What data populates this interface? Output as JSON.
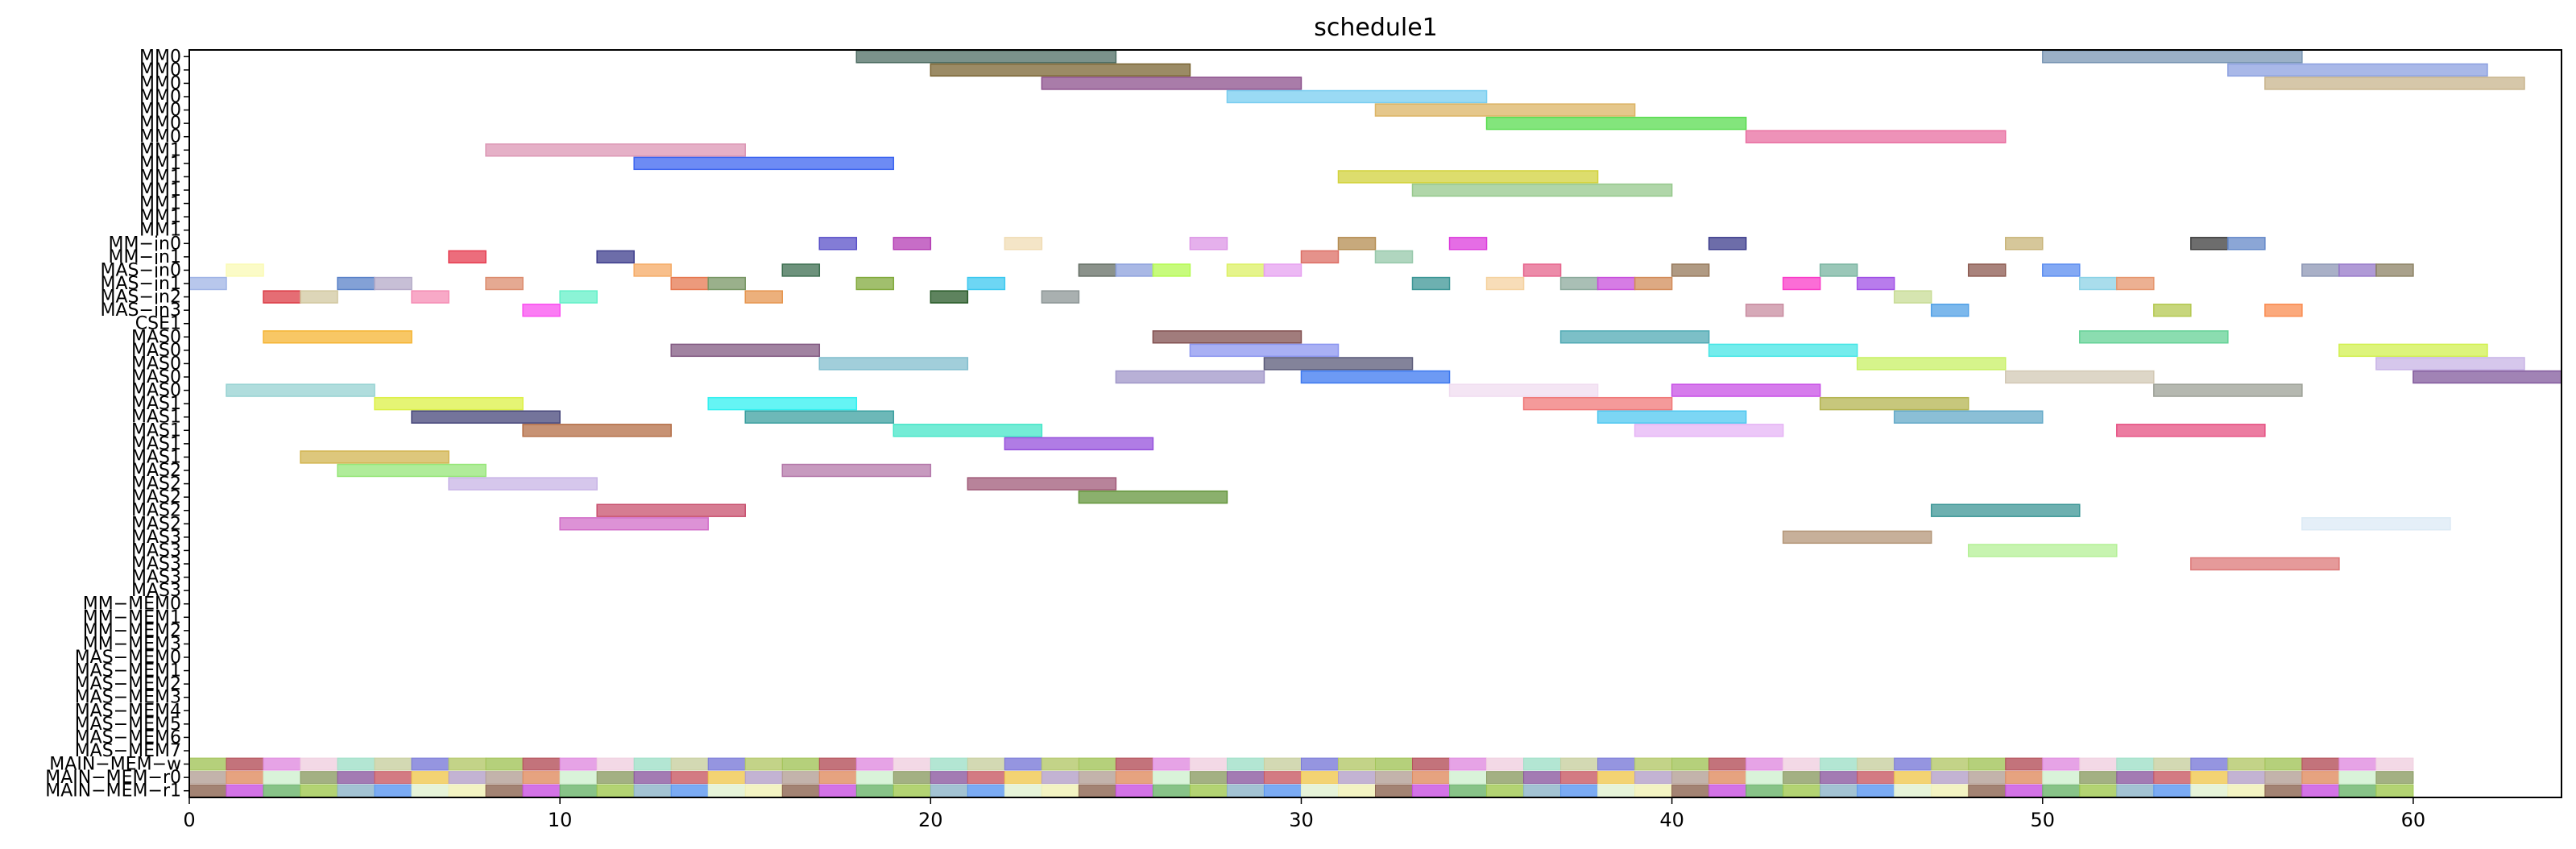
{
  "chart_data": {
    "type": "gantt",
    "title": "schedule1",
    "xlim": [
      0,
      64
    ],
    "x_ticks": [
      0,
      10,
      20,
      30,
      40,
      50,
      60
    ],
    "lanes": [
      "MM0",
      "MM0",
      "MM0",
      "MM0",
      "MM0",
      "MM0",
      "MM0",
      "MM1",
      "MM1",
      "MM1",
      "MM1",
      "MM1",
      "MM1",
      "MM1",
      "MM−in0",
      "MM−in1",
      "MAS−in0",
      "MAS−in1",
      "MAS−in2",
      "MAS−in3",
      "CSE1",
      "MAS0",
      "MAS0",
      "MAS0",
      "MAS0",
      "MAS0",
      "MAS1",
      "MAS1",
      "MAS1",
      "MAS1",
      "MAS1",
      "MAS2",
      "MAS2",
      "MAS2",
      "MAS2",
      "MAS2",
      "MAS3",
      "MAS3",
      "MAS3",
      "MAS3",
      "MAS3",
      "MM−MEM0",
      "MM−MEM1",
      "MM−MEM2",
      "MM−MEM3",
      "MAS−MEM0",
      "MAS−MEM1",
      "MAS−MEM2",
      "MAS−MEM3",
      "MAS−MEM4",
      "MAS−MEM5",
      "MAS−MEM6",
      "MAS−MEM7",
      "MAIN−MEM−w",
      "MAIN−MEM−r0",
      "MAIN−MEM−r1"
    ],
    "palette": [
      "#a3c45a",
      "#5aa05a",
      "#c8f08c",
      "#e0e060",
      "#90ee70",
      "#5a96f0",
      "#b4a0c8",
      "#b4505a",
      "#50b4c8",
      "#90c8a0",
      "#5ae05a",
      "#b450b4",
      "#e0f0d0",
      "#b4a096",
      "#e08ce0",
      "#b45ab4",
      "#7aee7a",
      "#e08c50",
      "#a0e080",
      "#f0f0b4",
      "#e08c60",
      "#f0d0e0",
      "#d0a0b4",
      "#c8b4dc",
      "#50b496",
      "#4682b4",
      "#8c6450",
      "#d0f0d0",
      "#a0e0c8",
      "#f08cb4",
      "#a0a080",
      "#a0508c",
      "#c8d850",
      "#c850e0",
      "#8c9c64",
      "#c8d0a0",
      "#a060e0",
      "#a0b4e0",
      "#6a6ad8",
      "#7ae0a0",
      "#6ab46a",
      "#8c5aa0",
      "#7a7ad8",
      "#f0b4f0",
      "#a0c8f0",
      "#b49c50",
      "#7ac8b4",
      "#a0c850",
      "#c85a64",
      "#b4c86a",
      "#5a8c8c",
      "#f09ca0",
      "#d0a050",
      "#b4a0b4",
      "#8cb4c8",
      "#f0c850"
    ],
    "bars": [
      {
        "lane": 0,
        "start": 18,
        "end": 25,
        "color": "#4f6e64"
      },
      {
        "lane": 0,
        "start": 50,
        "end": 57,
        "color": "#7a96b4"
      },
      {
        "lane": 1,
        "start": 20,
        "end": 27,
        "color": "#7a6432"
      },
      {
        "lane": 1,
        "start": 55,
        "end": 62,
        "color": "#8ca0e0"
      },
      {
        "lane": 2,
        "start": 23,
        "end": 30,
        "color": "#8c508c"
      },
      {
        "lane": 2,
        "start": 56,
        "end": 63,
        "color": "#c8b48c"
      },
      {
        "lane": 3,
        "start": 28,
        "end": 35,
        "color": "#78cdf0"
      },
      {
        "lane": 4,
        "start": 32,
        "end": 39,
        "color": "#dcb464"
      },
      {
        "lane": 5,
        "start": 35,
        "end": 42,
        "color": "#5adc50"
      },
      {
        "lane": 6,
        "start": 42,
        "end": 49,
        "color": "#e86ea0"
      },
      {
        "lane": 7,
        "start": 8,
        "end": 15,
        "color": "#dc96b4"
      },
      {
        "lane": 8,
        "start": 12,
        "end": 19,
        "color": "#3c64f0"
      },
      {
        "lane": 9,
        "start": 31,
        "end": 38,
        "color": "#d2d23c"
      },
      {
        "lane": 10,
        "start": 33,
        "end": 40,
        "color": "#96c88c"
      },
      {
        "lane": 14,
        "start": 17,
        "end": 18,
        "color": "#5a50c8"
      },
      {
        "lane": 14,
        "start": 19,
        "end": 20,
        "color": "#b43cb4"
      },
      {
        "lane": 14,
        "start": 22,
        "end": 23,
        "color": "#f0dcb4"
      },
      {
        "lane": 14,
        "start": 27,
        "end": 28,
        "color": "#dc96e6"
      },
      {
        "lane": 14,
        "start": 31,
        "end": 32,
        "color": "#b48c50"
      },
      {
        "lane": 14,
        "start": 34,
        "end": 35,
        "color": "#dc3cdc"
      },
      {
        "lane": 14,
        "start": 41,
        "end": 42,
        "color": "#3c3c8c"
      },
      {
        "lane": 14,
        "start": 49,
        "end": 50,
        "color": "#c8b478"
      },
      {
        "lane": 14,
        "start": 54,
        "end": 55,
        "color": "#3c3c3c"
      },
      {
        "lane": 14,
        "start": 55,
        "end": 56,
        "color": "#6488c8"
      },
      {
        "lane": 15,
        "start": 7,
        "end": 8,
        "color": "#e63c50"
      },
      {
        "lane": 15,
        "start": 11,
        "end": 12,
        "color": "#3c3c8c"
      },
      {
        "lane": 15,
        "start": 30,
        "end": 31,
        "color": "#dc6e64"
      },
      {
        "lane": 15,
        "start": 32,
        "end": 33,
        "color": "#96c8aa"
      },
      {
        "lane": 16,
        "start": 1,
        "end": 2,
        "color": "#fafab4"
      },
      {
        "lane": 16,
        "start": 12,
        "end": 13,
        "color": "#f5aa64"
      },
      {
        "lane": 16,
        "start": 16,
        "end": 17,
        "color": "#3c6e50"
      },
      {
        "lane": 16,
        "start": 24,
        "end": 25,
        "color": "#646e64"
      },
      {
        "lane": 16,
        "start": 25,
        "end": 26,
        "color": "#8ca0dc"
      },
      {
        "lane": 16,
        "start": 26,
        "end": 27,
        "color": "#b4fa50"
      },
      {
        "lane": 16,
        "start": 28,
        "end": 29,
        "color": "#dcf064"
      },
      {
        "lane": 16,
        "start": 29,
        "end": 30,
        "color": "#e6a0f0"
      },
      {
        "lane": 16,
        "start": 36,
        "end": 37,
        "color": "#e6648c"
      },
      {
        "lane": 16,
        "start": 40,
        "end": 41,
        "color": "#96785a"
      },
      {
        "lane": 16,
        "start": 44,
        "end": 45,
        "color": "#78b4a0"
      },
      {
        "lane": 16,
        "start": 48,
        "end": 49,
        "color": "#8c5a50"
      },
      {
        "lane": 16,
        "start": 50,
        "end": 51,
        "color": "#5a8cf0"
      },
      {
        "lane": 16,
        "start": 57,
        "end": 58,
        "color": "#8c96b4"
      },
      {
        "lane": 16,
        "start": 58,
        "end": 59,
        "color": "#9678c8"
      },
      {
        "lane": 16,
        "start": 59,
        "end": 60,
        "color": "#8c8264"
      },
      {
        "lane": 17,
        "start": 0,
        "end": 1,
        "color": "#a0b4e6"
      },
      {
        "lane": 17,
        "start": 4,
        "end": 5,
        "color": "#5a82c8"
      },
      {
        "lane": 17,
        "start": 5,
        "end": 6,
        "color": "#b4aac8"
      },
      {
        "lane": 17,
        "start": 8,
        "end": 9,
        "color": "#dc8c6e"
      },
      {
        "lane": 17,
        "start": 13,
        "end": 14,
        "color": "#e67850"
      },
      {
        "lane": 17,
        "start": 14,
        "end": 15,
        "color": "#789664"
      },
      {
        "lane": 17,
        "start": 18,
        "end": 19,
        "color": "#82aa3c"
      },
      {
        "lane": 17,
        "start": 21,
        "end": 22,
        "color": "#3cc8f0"
      },
      {
        "lane": 17,
        "start": 33,
        "end": 34,
        "color": "#3c9696"
      },
      {
        "lane": 17,
        "start": 35,
        "end": 36,
        "color": "#f5d2a0"
      },
      {
        "lane": 17,
        "start": 37,
        "end": 38,
        "color": "#8caa9c"
      },
      {
        "lane": 17,
        "start": 38,
        "end": 39,
        "color": "#c850dc"
      },
      {
        "lane": 17,
        "start": 39,
        "end": 40,
        "color": "#d28c5a"
      },
      {
        "lane": 17,
        "start": 43,
        "end": 44,
        "color": "#fa3cc8"
      },
      {
        "lane": 17,
        "start": 45,
        "end": 46,
        "color": "#a050e6"
      },
      {
        "lane": 17,
        "start": 51,
        "end": 52,
        "color": "#8cd2e6"
      },
      {
        "lane": 17,
        "start": 52,
        "end": 53,
        "color": "#e6966e"
      },
      {
        "lane": 18,
        "start": 2,
        "end": 3,
        "color": "#dc3c46"
      },
      {
        "lane": 18,
        "start": 3,
        "end": 4,
        "color": "#d2c8a0"
      },
      {
        "lane": 18,
        "start": 6,
        "end": 7,
        "color": "#f58cb4"
      },
      {
        "lane": 18,
        "start": 10,
        "end": 11,
        "color": "#64f0c8"
      },
      {
        "lane": 18,
        "start": 15,
        "end": 16,
        "color": "#e69650"
      },
      {
        "lane": 18,
        "start": 20,
        "end": 21,
        "color": "#285a28"
      },
      {
        "lane": 18,
        "start": 23,
        "end": 24,
        "color": "#8c9696"
      },
      {
        "lane": 18,
        "start": 46,
        "end": 47,
        "color": "#c8dc96"
      },
      {
        "lane": 19,
        "start": 9,
        "end": 10,
        "color": "#fa50f0"
      },
      {
        "lane": 19,
        "start": 42,
        "end": 43,
        "color": "#c88ca0"
      },
      {
        "lane": 19,
        "start": 47,
        "end": 48,
        "color": "#50a0e6"
      },
      {
        "lane": 19,
        "start": 53,
        "end": 54,
        "color": "#b4c850"
      },
      {
        "lane": 19,
        "start": 56,
        "end": 57,
        "color": "#fa8c50"
      },
      {
        "lane": 21,
        "start": 2,
        "end": 6,
        "color": "#f5b432"
      },
      {
        "lane": 21,
        "start": 26,
        "end": 30,
        "color": "#825050"
      },
      {
        "lane": 21,
        "start": 37,
        "end": 41,
        "color": "#50aab4"
      },
      {
        "lane": 21,
        "start": 51,
        "end": 55,
        "color": "#64d296"
      },
      {
        "lane": 22,
        "start": 13,
        "end": 17,
        "color": "#825a82"
      },
      {
        "lane": 22,
        "start": 27,
        "end": 31,
        "color": "#8c96f0"
      },
      {
        "lane": 22,
        "start": 41,
        "end": 45,
        "color": "#46e6e6"
      },
      {
        "lane": 22,
        "start": 58,
        "end": 62,
        "color": "#d2f050"
      },
      {
        "lane": 23,
        "start": 17,
        "end": 21,
        "color": "#82bece"
      },
      {
        "lane": 23,
        "start": 29,
        "end": 33,
        "color": "#5a5a78"
      },
      {
        "lane": 23,
        "start": 45,
        "end": 49,
        "color": "#c8f064"
      },
      {
        "lane": 23,
        "start": 59,
        "end": 63,
        "color": "#c8b4e6"
      },
      {
        "lane": 24,
        "start": 25,
        "end": 29,
        "color": "#a096c8"
      },
      {
        "lane": 24,
        "start": 30,
        "end": 34,
        "color": "#3c78f0"
      },
      {
        "lane": 24,
        "start": 49,
        "end": 53,
        "color": "#d2c8b4"
      },
      {
        "lane": 24,
        "start": 60,
        "end": 64,
        "color": "#825a9c"
      },
      {
        "lane": 25,
        "start": 1,
        "end": 5,
        "color": "#96d2d2"
      },
      {
        "lane": 25,
        "start": 34,
        "end": 38,
        "color": "#f0dcf0"
      },
      {
        "lane": 25,
        "start": 40,
        "end": 44,
        "color": "#c850e6"
      },
      {
        "lane": 25,
        "start": 53,
        "end": 57,
        "color": "#9ca096"
      },
      {
        "lane": 26,
        "start": 5,
        "end": 9,
        "color": "#dcf046"
      },
      {
        "lane": 26,
        "start": 14,
        "end": 18,
        "color": "#32f0f0"
      },
      {
        "lane": 26,
        "start": 36,
        "end": 40,
        "color": "#f07878"
      },
      {
        "lane": 26,
        "start": 44,
        "end": 48,
        "color": "#b4b450"
      },
      {
        "lane": 27,
        "start": 6,
        "end": 10,
        "color": "#46467a"
      },
      {
        "lane": 27,
        "start": 15,
        "end": 19,
        "color": "#3ca0a0"
      },
      {
        "lane": 27,
        "start": 38,
        "end": 42,
        "color": "#50c8f0"
      },
      {
        "lane": 27,
        "start": 46,
        "end": 50,
        "color": "#64aac8"
      },
      {
        "lane": 28,
        "start": 9,
        "end": 13,
        "color": "#b46e46"
      },
      {
        "lane": 28,
        "start": 19,
        "end": 23,
        "color": "#46e6c8"
      },
      {
        "lane": 28,
        "start": 39,
        "end": 43,
        "color": "#e6b4f5"
      },
      {
        "lane": 28,
        "start": 52,
        "end": 56,
        "color": "#e65082"
      },
      {
        "lane": 29,
        "start": 22,
        "end": 26,
        "color": "#9650dc"
      },
      {
        "lane": 30,
        "start": 3,
        "end": 7,
        "color": "#d2b450"
      },
      {
        "lane": 31,
        "start": 4,
        "end": 8,
        "color": "#96e678"
      },
      {
        "lane": 31,
        "start": 16,
        "end": 20,
        "color": "#b478aa"
      },
      {
        "lane": 32,
        "start": 7,
        "end": 11,
        "color": "#c8b4e6"
      },
      {
        "lane": 32,
        "start": 21,
        "end": 25,
        "color": "#a05a78"
      },
      {
        "lane": 33,
        "start": 24,
        "end": 28,
        "color": "#64963c"
      },
      {
        "lane": 34,
        "start": 11,
        "end": 15,
        "color": "#c8506e"
      },
      {
        "lane": 34,
        "start": 47,
        "end": 51,
        "color": "#3c9696"
      },
      {
        "lane": 35,
        "start": 10,
        "end": 14,
        "color": "#d26ec8"
      },
      {
        "lane": 35,
        "start": 57,
        "end": 61,
        "color": "#dceaf5"
      },
      {
        "lane": 36,
        "start": 43,
        "end": 47,
        "color": "#b49678"
      },
      {
        "lane": 37,
        "start": 48,
        "end": 52,
        "color": "#b4f096"
      },
      {
        "lane": 38,
        "start": 54,
        "end": 58,
        "color": "#dc7878"
      }
    ]
  }
}
